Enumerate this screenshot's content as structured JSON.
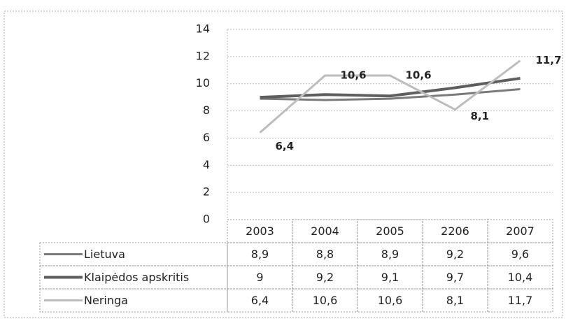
{
  "chart_data": {
    "type": "line",
    "categories": [
      "2003",
      "2004",
      "2005",
      "2206",
      "2007"
    ],
    "series": [
      {
        "name": "Lietuva",
        "color": "#7a7a7a",
        "values": [
          8.9,
          8.8,
          8.9,
          9.2,
          9.6
        ],
        "value_labels": [
          "8,9",
          "8,8",
          "8,9",
          "9,2",
          "9,6"
        ]
      },
      {
        "name": "Klaipėdos apskritis",
        "color": "#5e5e5e",
        "values": [
          9,
          9.2,
          9.1,
          9.7,
          10.4
        ],
        "value_labels": [
          "9",
          "9,2",
          "9,1",
          "9,7",
          "10,4"
        ]
      },
      {
        "name": "Neringa",
        "color": "#bdbdbd",
        "values": [
          6.4,
          10.6,
          10.6,
          8.1,
          11.7
        ],
        "value_labels": [
          "6,4",
          "10,6",
          "10,6",
          "8,1",
          "11,7"
        ]
      }
    ],
    "ylim": [
      0,
      14
    ],
    "yticks": [
      0,
      2,
      4,
      6,
      8,
      10,
      12,
      14
    ],
    "grid": true
  }
}
